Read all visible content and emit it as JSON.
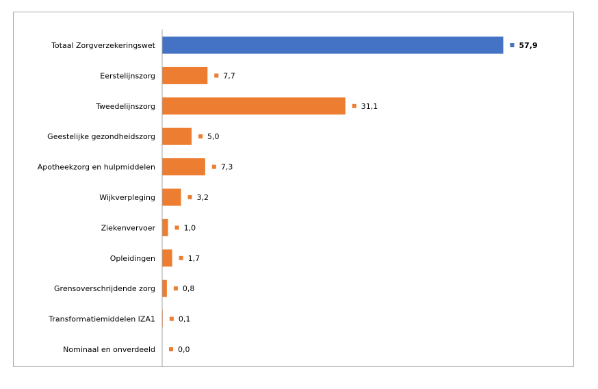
{
  "chart_data": {
    "type": "bar",
    "orientation": "horizontal",
    "categories": [
      "Totaal Zorgverzekeringswet",
      "Eerstelijnszorg",
      "Tweedelijnszorg",
      "Geestelijke gezondheidszorg",
      "Apotheekzorg en hulpmiddelen",
      "Wijkverpleging",
      "Ziekenvervoer",
      "Opleidingen",
      "Grensoverschrijdende zorg",
      "Transformatiemiddelen IZA1",
      "Nominaal en onverdeeld"
    ],
    "values": [
      57.9,
      7.7,
      31.1,
      5.0,
      7.3,
      3.2,
      1.0,
      1.7,
      0.8,
      0.1,
      0.0
    ],
    "value_labels": [
      "57,9",
      "7,7",
      "31,1",
      "5,0",
      "7,3",
      "3,2",
      "1,0",
      "1,7",
      "0,8",
      "0,1",
      "0,0"
    ],
    "xlim": [
      0,
      60
    ],
    "grid": false,
    "colors": {
      "total": "#4472c4",
      "component": "#ed7d31",
      "axis": "#a6a6a6"
    }
  }
}
